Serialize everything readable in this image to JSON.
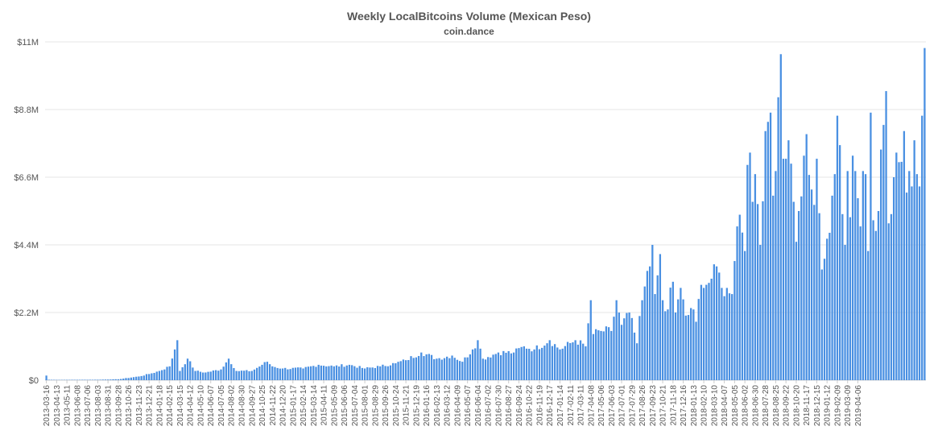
{
  "chart_data": {
    "type": "bar",
    "title": "Weekly LocalBitcoins Volume (Mexican Peso)",
    "subtitle": "coin.dance",
    "xlabel": "",
    "ylabel": "",
    "ylim": [
      0,
      11000000
    ],
    "y_ticks": [
      0,
      2200000,
      4400000,
      6600000,
      8800000,
      11000000
    ],
    "y_tick_labels": [
      "$0",
      "$2.2M",
      "$4.4M",
      "$6.6M",
      "$8.8M",
      "$11M"
    ],
    "grid": true,
    "legend": "none",
    "bar_color": "#4a90e2",
    "x_tick_labels": [
      "2013-03-16",
      "2013-04-13",
      "2013-05-11",
      "2013-06-08",
      "2013-07-06",
      "2013-08-03",
      "2013-08-31",
      "2013-09-28",
      "2013-10-26",
      "2013-11-23",
      "2013-12-21",
      "2014-01-18",
      "2014-02-15",
      "2014-03-15",
      "2014-04-12",
      "2014-05-10",
      "2014-06-07",
      "2014-07-05",
      "2014-08-02",
      "2014-08-30",
      "2014-09-27",
      "2014-10-25",
      "2014-11-22",
      "2014-12-20",
      "2015-01-17",
      "2015-02-14",
      "2015-03-14",
      "2015-04-11",
      "2015-05-09",
      "2015-06-06",
      "2015-07-04",
      "2015-08-01",
      "2015-08-29",
      "2015-09-26",
      "2015-10-24",
      "2015-11-21",
      "2015-12-19",
      "2016-01-16",
      "2016-02-13",
      "2016-03-12",
      "2016-04-09",
      "2016-05-07",
      "2016-06-04",
      "2016-07-02",
      "2016-07-30",
      "2016-08-27",
      "2016-09-24",
      "2016-10-22",
      "2016-11-19",
      "2016-12-17",
      "2017-01-14",
      "2017-02-11",
      "2017-03-11",
      "2017-04-08",
      "2017-05-06",
      "2017-06-03",
      "2017-07-01",
      "2017-07-29",
      "2017-08-26",
      "2017-09-23",
      "2017-10-21",
      "2017-11-18",
      "2017-12-16",
      "2018-01-13",
      "2018-02-10",
      "2018-03-10",
      "2018-04-07",
      "2018-05-05",
      "2018-06-02",
      "2018-06-30",
      "2018-07-28",
      "2018-08-25",
      "2018-09-22",
      "2018-10-20",
      "2018-11-17",
      "2018-12-15",
      "2019-01-12",
      "2019-02-09",
      "2019-03-09",
      "2019-04-06"
    ],
    "keyframes": [
      [
        0,
        150000
      ],
      [
        1,
        15000
      ],
      [
        4,
        10000
      ],
      [
        20,
        15000
      ],
      [
        28,
        30000
      ],
      [
        36,
        120000
      ],
      [
        40,
        200000
      ],
      [
        44,
        300000
      ],
      [
        48,
        450000
      ],
      [
        50,
        1000000
      ],
      [
        51,
        1300000
      ],
      [
        52,
        300000
      ],
      [
        55,
        700000
      ],
      [
        58,
        300000
      ],
      [
        62,
        250000
      ],
      [
        68,
        350000
      ],
      [
        71,
        700000
      ],
      [
        74,
        300000
      ],
      [
        80,
        300000
      ],
      [
        84,
        500000
      ],
      [
        86,
        600000
      ],
      [
        88,
        450000
      ],
      [
        92,
        380000
      ],
      [
        100,
        380000
      ],
      [
        106,
        500000
      ],
      [
        112,
        450000
      ],
      [
        118,
        500000
      ],
      [
        124,
        380000
      ],
      [
        130,
        450000
      ],
      [
        136,
        550000
      ],
      [
        140,
        650000
      ],
      [
        146,
        900000
      ],
      [
        152,
        700000
      ],
      [
        158,
        800000
      ],
      [
        162,
        600000
      ],
      [
        166,
        1000000
      ],
      [
        168,
        1300000
      ],
      [
        170,
        700000
      ],
      [
        176,
        900000
      ],
      [
        182,
        900000
      ],
      [
        186,
        1100000
      ],
      [
        190,
        1000000
      ],
      [
        196,
        1300000
      ],
      [
        200,
        1000000
      ],
      [
        206,
        1300000
      ],
      [
        210,
        1100000
      ],
      [
        212,
        2600000
      ],
      [
        213,
        1500000
      ],
      [
        216,
        1600000
      ],
      [
        220,
        1600000
      ],
      [
        222,
        2600000
      ],
      [
        224,
        1800000
      ],
      [
        227,
        2200000
      ],
      [
        230,
        1200000
      ],
      [
        232,
        2600000
      ],
      [
        235,
        3700000
      ],
      [
        236,
        4400000
      ],
      [
        237,
        2800000
      ],
      [
        239,
        4100000
      ],
      [
        240,
        2600000
      ],
      [
        242,
        2300000
      ],
      [
        244,
        3200000
      ],
      [
        245,
        2200000
      ],
      [
        247,
        3000000
      ],
      [
        249,
        2100000
      ],
      [
        252,
        2300000
      ],
      [
        253,
        1900000
      ],
      [
        255,
        3100000
      ],
      [
        256,
        3000000
      ],
      [
        259,
        3300000
      ],
      [
        261,
        3700000
      ],
      [
        263,
        3000000
      ],
      [
        265,
        3000000
      ],
      [
        267,
        2800000
      ],
      [
        269,
        5000000
      ],
      [
        271,
        4800000
      ],
      [
        272,
        4200000
      ],
      [
        273,
        7000000
      ],
      [
        274,
        7400000
      ],
      [
        275,
        5800000
      ],
      [
        276,
        6700000
      ],
      [
        278,
        4400000
      ],
      [
        280,
        8100000
      ],
      [
        281,
        8400000
      ],
      [
        282,
        8700000
      ],
      [
        283,
        6000000
      ],
      [
        284,
        6800000
      ],
      [
        285,
        9200000
      ],
      [
        286,
        10600000
      ],
      [
        287,
        7200000
      ],
      [
        288,
        7200000
      ],
      [
        289,
        7800000
      ],
      [
        291,
        5800000
      ],
      [
        292,
        4500000
      ],
      [
        293,
        5500000
      ],
      [
        295,
        7300000
      ],
      [
        296,
        8000000
      ],
      [
        298,
        6200000
      ],
      [
        299,
        5700000
      ],
      [
        300,
        7200000
      ],
      [
        302,
        3600000
      ],
      [
        304,
        4600000
      ],
      [
        306,
        6000000
      ],
      [
        307,
        6700000
      ],
      [
        308,
        8600000
      ],
      [
        310,
        5400000
      ],
      [
        311,
        4400000
      ],
      [
        312,
        6800000
      ],
      [
        313,
        5300000
      ],
      [
        314,
        7300000
      ],
      [
        315,
        6800000
      ],
      [
        317,
        5000000
      ],
      [
        318,
        6800000
      ],
      [
        319,
        6700000
      ],
      [
        320,
        4200000
      ],
      [
        321,
        8700000
      ],
      [
        322,
        5200000
      ],
      [
        324,
        5500000
      ],
      [
        325,
        7500000
      ],
      [
        326,
        8300000
      ],
      [
        327,
        9400000
      ],
      [
        328,
        5100000
      ],
      [
        329,
        5400000
      ],
      [
        330,
        6600000
      ],
      [
        331,
        7400000
      ],
      [
        333,
        7100000
      ],
      [
        334,
        8100000
      ],
      [
        335,
        6100000
      ],
      [
        336,
        6800000
      ],
      [
        337,
        6300000
      ],
      [
        338,
        7800000
      ],
      [
        339,
        6700000
      ],
      [
        340,
        6300000
      ],
      [
        341,
        8600000
      ],
      [
        342,
        10800000
      ]
    ],
    "values": []
  }
}
